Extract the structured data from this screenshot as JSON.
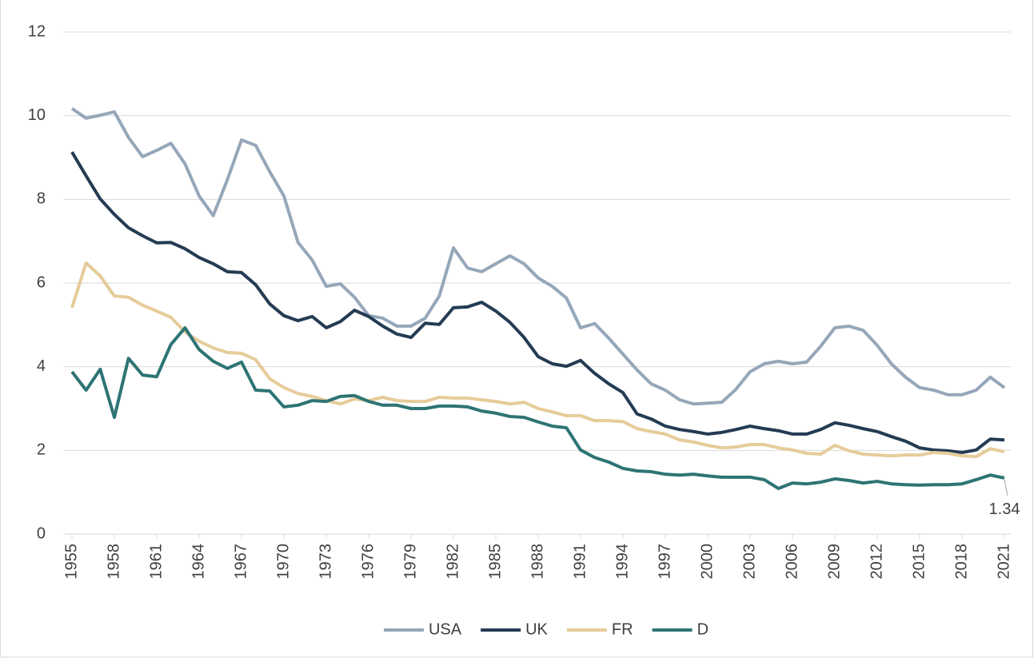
{
  "chart_data": {
    "type": "line",
    "x": [
      1955,
      1956,
      1957,
      1958,
      1959,
      1960,
      1961,
      1962,
      1963,
      1964,
      1965,
      1966,
      1967,
      1968,
      1969,
      1970,
      1971,
      1972,
      1973,
      1974,
      1975,
      1976,
      1977,
      1978,
      1979,
      1980,
      1981,
      1982,
      1983,
      1984,
      1985,
      1986,
      1987,
      1988,
      1989,
      1990,
      1991,
      1992,
      1993,
      1994,
      1995,
      1996,
      1997,
      1998,
      1999,
      2000,
      2001,
      2002,
      2003,
      2004,
      2005,
      2006,
      2007,
      2008,
      2009,
      2010,
      2011,
      2012,
      2013,
      2014,
      2015,
      2016,
      2017,
      2018,
      2019,
      2020,
      2021
    ],
    "xlim": [
      1955,
      2021
    ],
    "xticks": [
      1955,
      1958,
      1961,
      1964,
      1967,
      1970,
      1973,
      1976,
      1979,
      1982,
      1985,
      1988,
      1991,
      1994,
      1997,
      2000,
      2003,
      2006,
      2009,
      2012,
      2015,
      2018,
      2021
    ],
    "ylim": [
      0,
      12
    ],
    "yticks": [
      0,
      2,
      4,
      6,
      8,
      10,
      12
    ],
    "grid": true,
    "legend": "bottom",
    "series": [
      {
        "name": "USA",
        "color": "#95a7b9",
        "values": [
          10.17,
          9.94,
          10.01,
          10.09,
          9.48,
          9.02,
          9.17,
          9.34,
          8.85,
          8.08,
          7.61,
          8.47,
          9.42,
          9.29,
          8.66,
          8.08,
          6.97,
          6.55,
          5.92,
          5.98,
          5.66,
          5.22,
          5.16,
          4.97,
          4.97,
          5.16,
          5.69,
          6.84,
          6.36,
          6.27,
          6.46,
          6.65,
          6.46,
          6.12,
          5.92,
          5.64,
          4.93,
          5.03,
          4.68,
          4.3,
          3.92,
          3.59,
          3.44,
          3.21,
          3.11,
          3.13,
          3.15,
          3.46,
          3.88,
          4.07,
          4.13,
          4.07,
          4.11,
          4.49,
          4.93,
          4.97,
          4.87,
          4.51,
          4.07,
          3.75,
          3.5,
          3.44,
          3.33,
          3.33,
          3.44,
          3.75,
          3.5
        ]
      },
      {
        "name": "UK",
        "color": "#243b53",
        "values": [
          9.13,
          8.56,
          8.01,
          7.64,
          7.32,
          7.13,
          6.96,
          6.97,
          6.82,
          6.61,
          6.46,
          6.27,
          6.25,
          5.96,
          5.5,
          5.22,
          5.1,
          5.2,
          4.93,
          5.08,
          5.35,
          5.2,
          4.97,
          4.78,
          4.7,
          5.04,
          5.01,
          5.41,
          5.43,
          5.54,
          5.33,
          5.06,
          4.7,
          4.24,
          4.07,
          4.01,
          4.15,
          3.84,
          3.59,
          3.38,
          2.87,
          2.75,
          2.58,
          2.5,
          2.45,
          2.39,
          2.43,
          2.5,
          2.58,
          2.52,
          2.47,
          2.39,
          2.39,
          2.5,
          2.66,
          2.6,
          2.52,
          2.45,
          2.33,
          2.22,
          2.06,
          2.01,
          1.99,
          1.95,
          2.01,
          2.27,
          2.25
        ]
      },
      {
        "name": "FR",
        "color": "#e6cc9a",
        "values": [
          5.41,
          6.48,
          6.17,
          5.69,
          5.66,
          5.47,
          5.33,
          5.18,
          4.83,
          4.61,
          4.45,
          4.34,
          4.32,
          4.17,
          3.71,
          3.5,
          3.36,
          3.29,
          3.19,
          3.11,
          3.23,
          3.19,
          3.27,
          3.19,
          3.17,
          3.17,
          3.27,
          3.25,
          3.25,
          3.21,
          3.17,
          3.11,
          3.15,
          3.0,
          2.92,
          2.83,
          2.83,
          2.71,
          2.71,
          2.69,
          2.52,
          2.45,
          2.39,
          2.25,
          2.2,
          2.12,
          2.06,
          2.08,
          2.14,
          2.14,
          2.06,
          2.01,
          1.93,
          1.91,
          2.12,
          1.99,
          1.91,
          1.89,
          1.87,
          1.89,
          1.89,
          1.95,
          1.93,
          1.87,
          1.85,
          2.04,
          1.97
        ]
      },
      {
        "name": "D",
        "color": "#2e7474",
        "values": [
          3.88,
          3.44,
          3.94,
          2.79,
          4.2,
          3.8,
          3.76,
          4.53,
          4.93,
          4.41,
          4.13,
          3.96,
          4.11,
          3.44,
          3.42,
          3.04,
          3.08,
          3.19,
          3.17,
          3.29,
          3.31,
          3.17,
          3.08,
          3.08,
          3.0,
          3.0,
          3.06,
          3.06,
          3.04,
          2.94,
          2.89,
          2.81,
          2.79,
          2.68,
          2.58,
          2.54,
          2.01,
          1.83,
          1.72,
          1.57,
          1.51,
          1.49,
          1.43,
          1.41,
          1.43,
          1.39,
          1.36,
          1.36,
          1.36,
          1.3,
          1.09,
          1.22,
          1.2,
          1.24,
          1.32,
          1.28,
          1.22,
          1.26,
          1.2,
          1.18,
          1.17,
          1.18,
          1.18,
          1.2,
          1.3,
          1.41,
          1.34
        ],
        "value_labels": [
          null,
          null,
          null,
          null,
          null,
          null,
          null,
          null,
          null,
          null,
          null,
          null,
          null,
          null,
          null,
          null,
          null,
          null,
          null,
          null,
          null,
          null,
          null,
          null,
          null,
          null,
          null,
          null,
          null,
          null,
          null,
          null,
          null,
          null,
          null,
          null,
          null,
          null,
          null,
          null,
          null,
          null,
          null,
          null,
          null,
          null,
          null,
          null,
          null,
          null,
          null,
          null,
          null,
          null,
          null,
          null,
          null,
          null,
          null,
          null,
          null,
          null,
          null,
          null,
          null,
          null,
          "1.34"
        ]
      }
    ]
  }
}
